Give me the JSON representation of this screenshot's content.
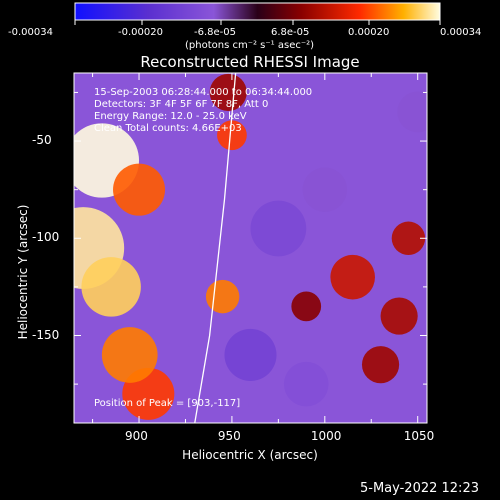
{
  "colorbar": {
    "ticks": [
      "-0.00034",
      "-0.00020",
      "-6.8e-05",
      "6.8e-05",
      "0.00020",
      "0.00034"
    ],
    "unit_label": "(photons cm⁻² s⁻¹ asec⁻²)",
    "colors": [
      "#1010ff",
      "#5a2fd0",
      "#8a55d8",
      "#2a0018",
      "#8a0000",
      "#ff2a00",
      "#ffb000",
      "#fffce0"
    ]
  },
  "annotations": {
    "time_range": "15-Sep-2003 06:28:44.000 to 06:34:44.000",
    "detectors": "Detectors: 3F 4F 5F 6F 7F 8F, Att 0",
    "energy": "Energy Range: 12.0 - 25.0 keV",
    "method": "Clean    Total counts: 4.66E+03",
    "peak": "Position of Peak = [903,-117]"
  },
  "footer": {
    "date": "5-May-2022 12:23"
  },
  "chart_data": {
    "type": "heatmap",
    "title": "Reconstructed RHESSI Image",
    "xlabel": "Heliocentric X (arcsec)",
    "ylabel": "Heliocentric Y (arcsec)",
    "xlim": [
      865,
      1055
    ],
    "ylim": [
      -195,
      -15
    ],
    "xticks": [
      900,
      950,
      1000,
      1050
    ],
    "yticks": [
      -50,
      -100,
      -150
    ],
    "value_range": [
      -0.00034,
      0.00034
    ],
    "limb_curve": [
      [
        952,
        -15
      ],
      [
        946,
        -80
      ],
      [
        938,
        -150
      ],
      [
        930,
        -195
      ]
    ],
    "sources": [
      {
        "x": 880,
        "y": -60,
        "value": 0.00034,
        "r": 20
      },
      {
        "x": 870,
        "y": -105,
        "value": 0.00032,
        "r": 22
      },
      {
        "x": 885,
        "y": -125,
        "value": 0.0003,
        "r": 16
      },
      {
        "x": 900,
        "y": -75,
        "value": 0.00022,
        "r": 14
      },
      {
        "x": 905,
        "y": -180,
        "value": 0.0002,
        "r": 14
      },
      {
        "x": 895,
        "y": -160,
        "value": 0.00024,
        "r": 15
      },
      {
        "x": 950,
        "y": -47,
        "value": 0.0002,
        "r": 8
      },
      {
        "x": 945,
        "y": -130,
        "value": 0.00024,
        "r": 9
      },
      {
        "x": 948,
        "y": -25,
        "value": 0.0001,
        "r": 10
      },
      {
        "x": 1015,
        "y": -120,
        "value": 0.00014,
        "r": 12
      },
      {
        "x": 1045,
        "y": -100,
        "value": 0.00012,
        "r": 9
      },
      {
        "x": 1030,
        "y": -165,
        "value": 0.0001,
        "r": 10
      },
      {
        "x": 990,
        "y": -135,
        "value": 8e-05,
        "r": 8
      },
      {
        "x": 1040,
        "y": -140,
        "value": 0.00011,
        "r": 10
      },
      {
        "x": 975,
        "y": -95,
        "value": -0.00012,
        "r": 15
      },
      {
        "x": 960,
        "y": -160,
        "value": -0.00014,
        "r": 14
      },
      {
        "x": 1000,
        "y": -75,
        "value": -8e-05,
        "r": 12
      },
      {
        "x": 990,
        "y": -175,
        "value": -0.0001,
        "r": 12
      },
      {
        "x": 1050,
        "y": -35,
        "value": -8e-05,
        "r": 11
      }
    ]
  }
}
